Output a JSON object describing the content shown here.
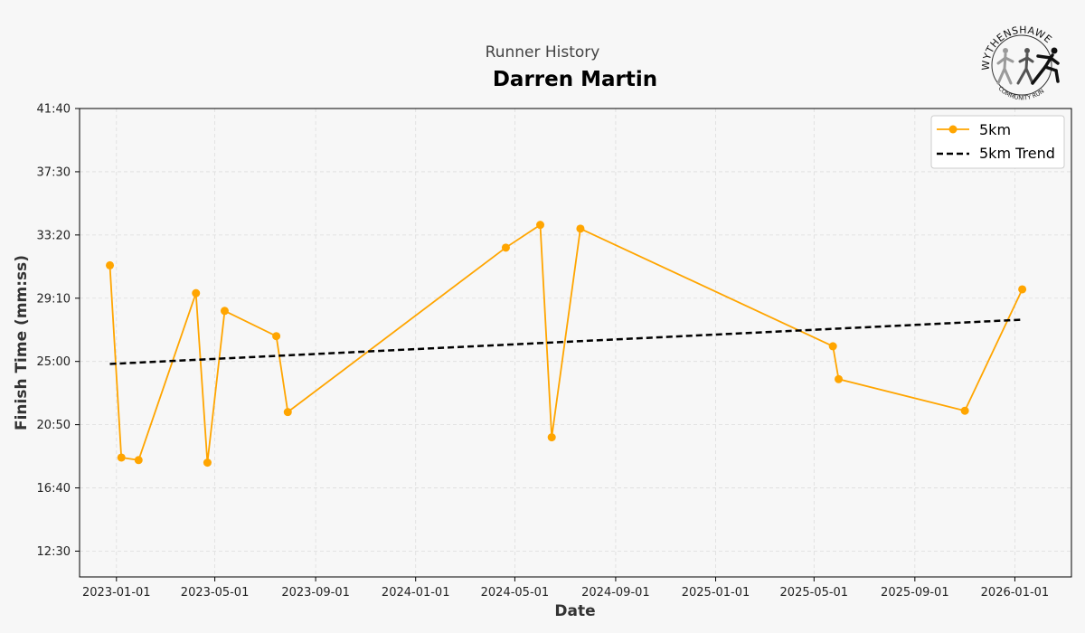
{
  "header": {
    "subtitle": "Runner History",
    "title": "Darren Martin"
  },
  "logo": {
    "top_text": "WYTHENSHAWE",
    "bottom_text": "COMMUNITY RUN",
    "icon": "runners-logo-icon"
  },
  "colors": {
    "series": "#FFA500",
    "trend": "#000000",
    "grid": "#dddddd"
  },
  "chart_data": {
    "type": "line",
    "xlabel": "Date",
    "ylabel": "Finish Time (mm:ss)",
    "x_ticks": [
      "2023-01-01",
      "2023-05-01",
      "2023-09-01",
      "2024-01-01",
      "2024-05-01",
      "2024-09-01",
      "2025-01-01",
      "2025-05-01",
      "2025-09-01",
      "2026-01-01"
    ],
    "y_ticks": [
      "12:30",
      "16:40",
      "20:50",
      "25:00",
      "29:10",
      "33:20",
      "37:30",
      "41:40"
    ],
    "xlim": [
      "2022-11-17",
      "2026-03-11"
    ],
    "ylim": [
      "10:48",
      "41:40"
    ],
    "grid": true,
    "legend_position": "top-right",
    "series": [
      {
        "name": "5km",
        "style": "line-with-markers",
        "x": [
          "2022-12-24",
          "2023-01-07",
          "2023-01-28",
          "2023-04-08",
          "2023-04-22",
          "2023-05-13",
          "2023-07-15",
          "2023-07-29",
          "2024-04-20",
          "2024-06-01",
          "2024-06-15",
          "2024-07-20",
          "2025-05-24",
          "2025-05-31",
          "2025-11-01",
          "2026-01-10"
        ],
        "y": [
          "31:20",
          "18:40",
          "18:30",
          "29:30",
          "18:20",
          "28:20",
          "26:40",
          "21:40",
          "32:30",
          "34:00",
          "20:00",
          "33:45",
          "26:00",
          "23:50",
          "21:45",
          "29:45"
        ]
      },
      {
        "name": "5km Trend",
        "style": "dashed",
        "x": [
          "2022-12-24",
          "2026-01-10"
        ],
        "y": [
          "24:50",
          "27:45"
        ]
      }
    ]
  }
}
